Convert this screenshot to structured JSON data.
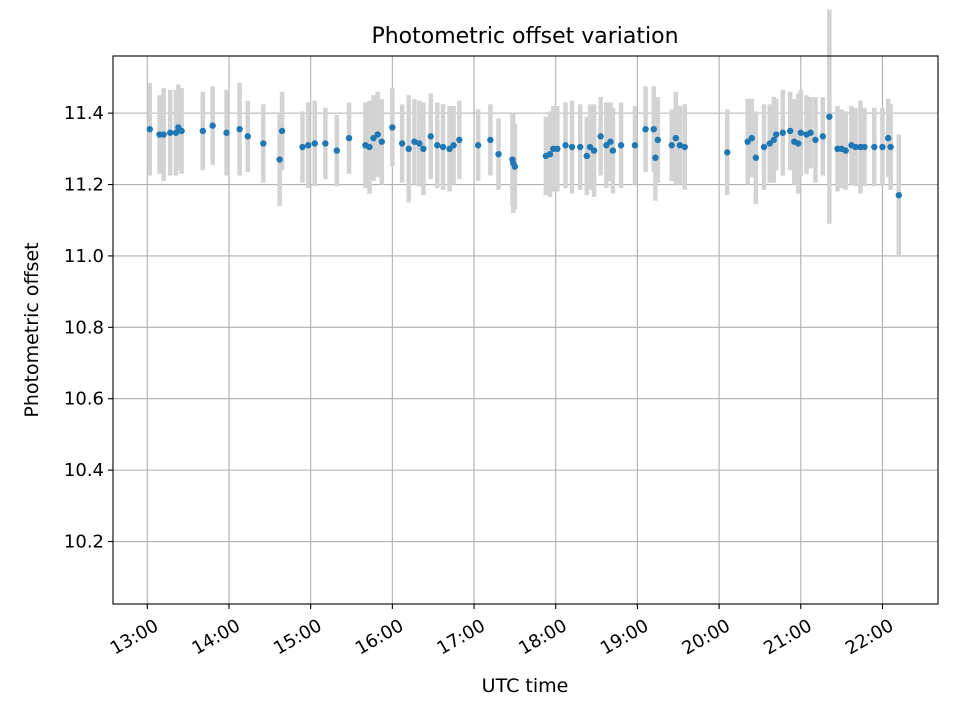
{
  "chart_data": {
    "type": "scatter",
    "title": "Photometric offset variation",
    "xlabel": "UTC time",
    "ylabel": "Photometric offset",
    "x_tick_labels": [
      "13:00",
      "14:00",
      "15:00",
      "16:00",
      "17:00",
      "18:00",
      "19:00",
      "20:00",
      "21:00",
      "22:00"
    ],
    "x_tick_values": [
      13,
      14,
      15,
      16,
      17,
      18,
      19,
      20,
      21,
      22
    ],
    "y_tick_labels": [
      "10.2",
      "10.4",
      "10.6",
      "10.8",
      "11.0",
      "11.2",
      "11.4"
    ],
    "y_tick_values": [
      10.2,
      10.4,
      10.6,
      10.8,
      11.0,
      11.2,
      11.4
    ],
    "xlim": [
      12.58,
      22.68
    ],
    "ylim": [
      10.025,
      11.56
    ],
    "grid": true,
    "colors": {
      "points": "#1f77b4",
      "errorbars": "#d3d3d3",
      "grid": "#b0b0b0"
    },
    "series": [
      {
        "x": [
          13.03,
          13.15,
          13.2,
          13.28,
          13.35,
          13.38,
          13.42,
          13.68,
          13.8,
          13.97,
          14.13,
          14.23,
          14.42,
          14.62,
          14.65,
          14.9,
          14.97,
          15.05,
          15.18,
          15.32,
          15.47,
          15.67,
          15.72,
          15.77,
          15.82,
          15.87,
          16.0,
          16.12,
          16.2,
          16.27,
          16.33,
          16.38,
          16.47,
          16.55,
          16.62,
          16.7,
          16.75,
          16.82,
          17.05,
          17.2,
          17.3,
          17.47,
          17.48,
          17.5,
          17.88,
          17.93,
          17.97,
          18.02,
          18.12,
          18.2,
          18.3,
          18.38,
          18.42,
          18.47,
          18.55,
          18.62,
          18.67,
          18.7,
          18.8,
          18.97,
          19.1,
          19.2,
          19.22,
          19.25,
          19.42,
          19.47,
          19.52,
          19.58,
          20.1,
          20.35,
          20.4,
          20.45,
          20.55,
          20.62,
          20.67,
          20.7,
          20.78,
          20.87,
          20.92,
          20.97,
          21.0,
          21.07,
          21.12,
          21.18,
          21.27,
          21.35,
          21.45,
          21.5,
          21.55,
          21.62,
          21.67,
          21.73,
          21.78,
          21.9,
          22.0,
          22.07,
          22.1,
          22.2
        ],
        "y": [
          11.355,
          11.34,
          11.34,
          11.345,
          11.345,
          11.36,
          11.35,
          11.35,
          11.365,
          11.345,
          11.355,
          11.335,
          11.315,
          11.27,
          11.35,
          11.305,
          11.31,
          11.315,
          11.315,
          11.295,
          11.33,
          11.31,
          11.305,
          11.33,
          11.34,
          11.32,
          11.36,
          11.315,
          11.3,
          11.32,
          11.315,
          11.3,
          11.335,
          11.31,
          11.305,
          11.3,
          11.31,
          11.325,
          11.31,
          11.325,
          11.285,
          11.27,
          11.26,
          11.25,
          11.28,
          11.285,
          11.3,
          11.3,
          11.31,
          11.305,
          11.305,
          11.28,
          11.305,
          11.295,
          11.335,
          11.31,
          11.32,
          11.295,
          11.31,
          11.31,
          11.355,
          11.355,
          11.275,
          11.325,
          11.31,
          11.33,
          11.31,
          11.305,
          11.29,
          11.32,
          11.33,
          11.275,
          11.305,
          11.315,
          11.325,
          11.34,
          11.345,
          11.35,
          11.32,
          11.315,
          11.345,
          11.34,
          11.345,
          11.325,
          11.335,
          11.39,
          11.3,
          11.3,
          11.295,
          11.31,
          11.305,
          11.305,
          11.305,
          11.305,
          11.305,
          11.33,
          11.305,
          11.17
        ],
        "yerr": [
          0.13,
          0.11,
          0.13,
          0.12,
          0.12,
          0.12,
          0.12,
          0.11,
          0.11,
          0.12,
          0.13,
          0.1,
          0.11,
          0.13,
          0.11,
          0.1,
          0.12,
          0.12,
          0.1,
          0.1,
          0.1,
          0.12,
          0.13,
          0.12,
          0.12,
          0.12,
          0.11,
          0.11,
          0.15,
          0.12,
          0.12,
          0.13,
          0.12,
          0.12,
          0.12,
          0.12,
          0.11,
          0.11,
          0.1,
          0.1,
          0.1,
          0.13,
          0.14,
          0.12,
          0.11,
          0.12,
          0.12,
          0.12,
          0.12,
          0.13,
          0.12,
          0.11,
          0.12,
          0.13,
          0.11,
          0.12,
          0.11,
          0.12,
          0.12,
          0.11,
          0.12,
          0.12,
          0.12,
          0.12,
          0.1,
          0.13,
          0.11,
          0.12,
          0.12,
          0.12,
          0.11,
          0.13,
          0.12,
          0.11,
          0.12,
          0.1,
          0.12,
          0.11,
          0.12,
          0.14,
          0.12,
          0.11,
          0.1,
          0.12,
          0.11,
          0.3,
          0.12,
          0.11,
          0.11,
          0.11,
          0.11,
          0.13,
          0.11,
          0.11,
          0.11,
          0.11,
          0.12,
          0.17
        ]
      }
    ]
  }
}
